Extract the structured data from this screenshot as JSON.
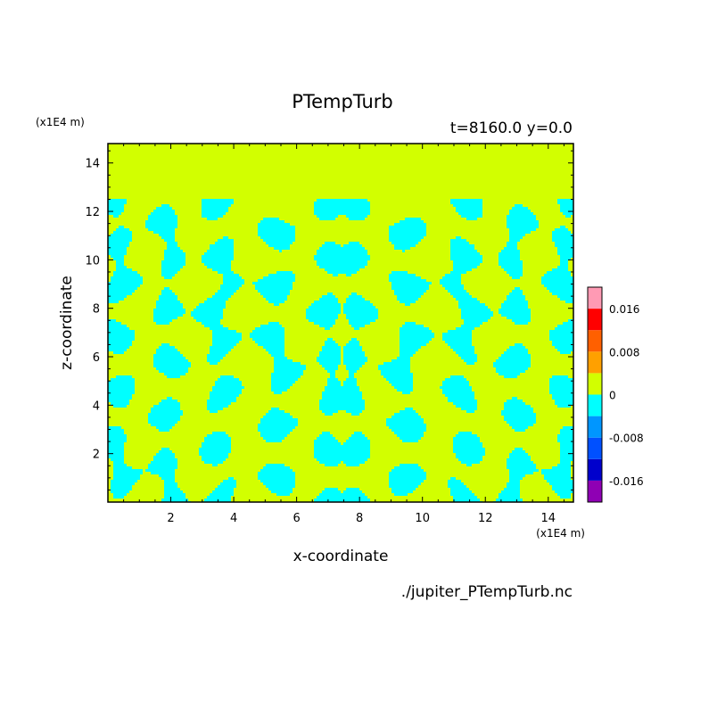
{
  "chart_data": {
    "type": "heatmap",
    "title": "PTempTurb",
    "subtitle": "t=8160.0 y=0.0",
    "xlabel": "x-coordinate",
    "ylabel": "z-coordinate",
    "x_unit": "(x1E4 m)",
    "y_unit": "(x1E4 m)",
    "source": "./jupiter_PTempTurb.nc",
    "xlim": [
      0,
      14.8
    ],
    "ylim": [
      0,
      14.8
    ],
    "x_ticks": [
      2,
      4,
      6,
      8,
      10,
      12,
      14
    ],
    "y_ticks": [
      2,
      4,
      6,
      8,
      10,
      12,
      14
    ],
    "x_tick_labels": [
      "2",
      "4",
      "6",
      "8",
      "10",
      "12",
      "14"
    ],
    "y_tick_labels": [
      "2",
      "4",
      "6",
      "8",
      "10",
      "12",
      "14"
    ],
    "turbulent_layer_top": 12.5,
    "background_value": 0,
    "pattern_value": -0.004,
    "colorbar": {
      "boundaries": [
        -0.02,
        -0.016,
        -0.012,
        -0.008,
        -0.004,
        0,
        0.004,
        0.008,
        0.012,
        0.016,
        0.02
      ],
      "colors": [
        "#8f00b4",
        "#0000cc",
        "#0050ff",
        "#0096ff",
        "#00ffff",
        "#d2ff00",
        "#ffa000",
        "#ff6000",
        "#ff0000",
        "#ff9ab4"
      ],
      "labels": [
        {
          "value": -0.016,
          "text": "-0.016"
        },
        {
          "value": -0.008,
          "text": "-0.008"
        },
        {
          "value": 0,
          "text": "0"
        },
        {
          "value": 0.008,
          "text": "0.008"
        },
        {
          "value": 0.016,
          "text": "0.016"
        }
      ]
    }
  }
}
